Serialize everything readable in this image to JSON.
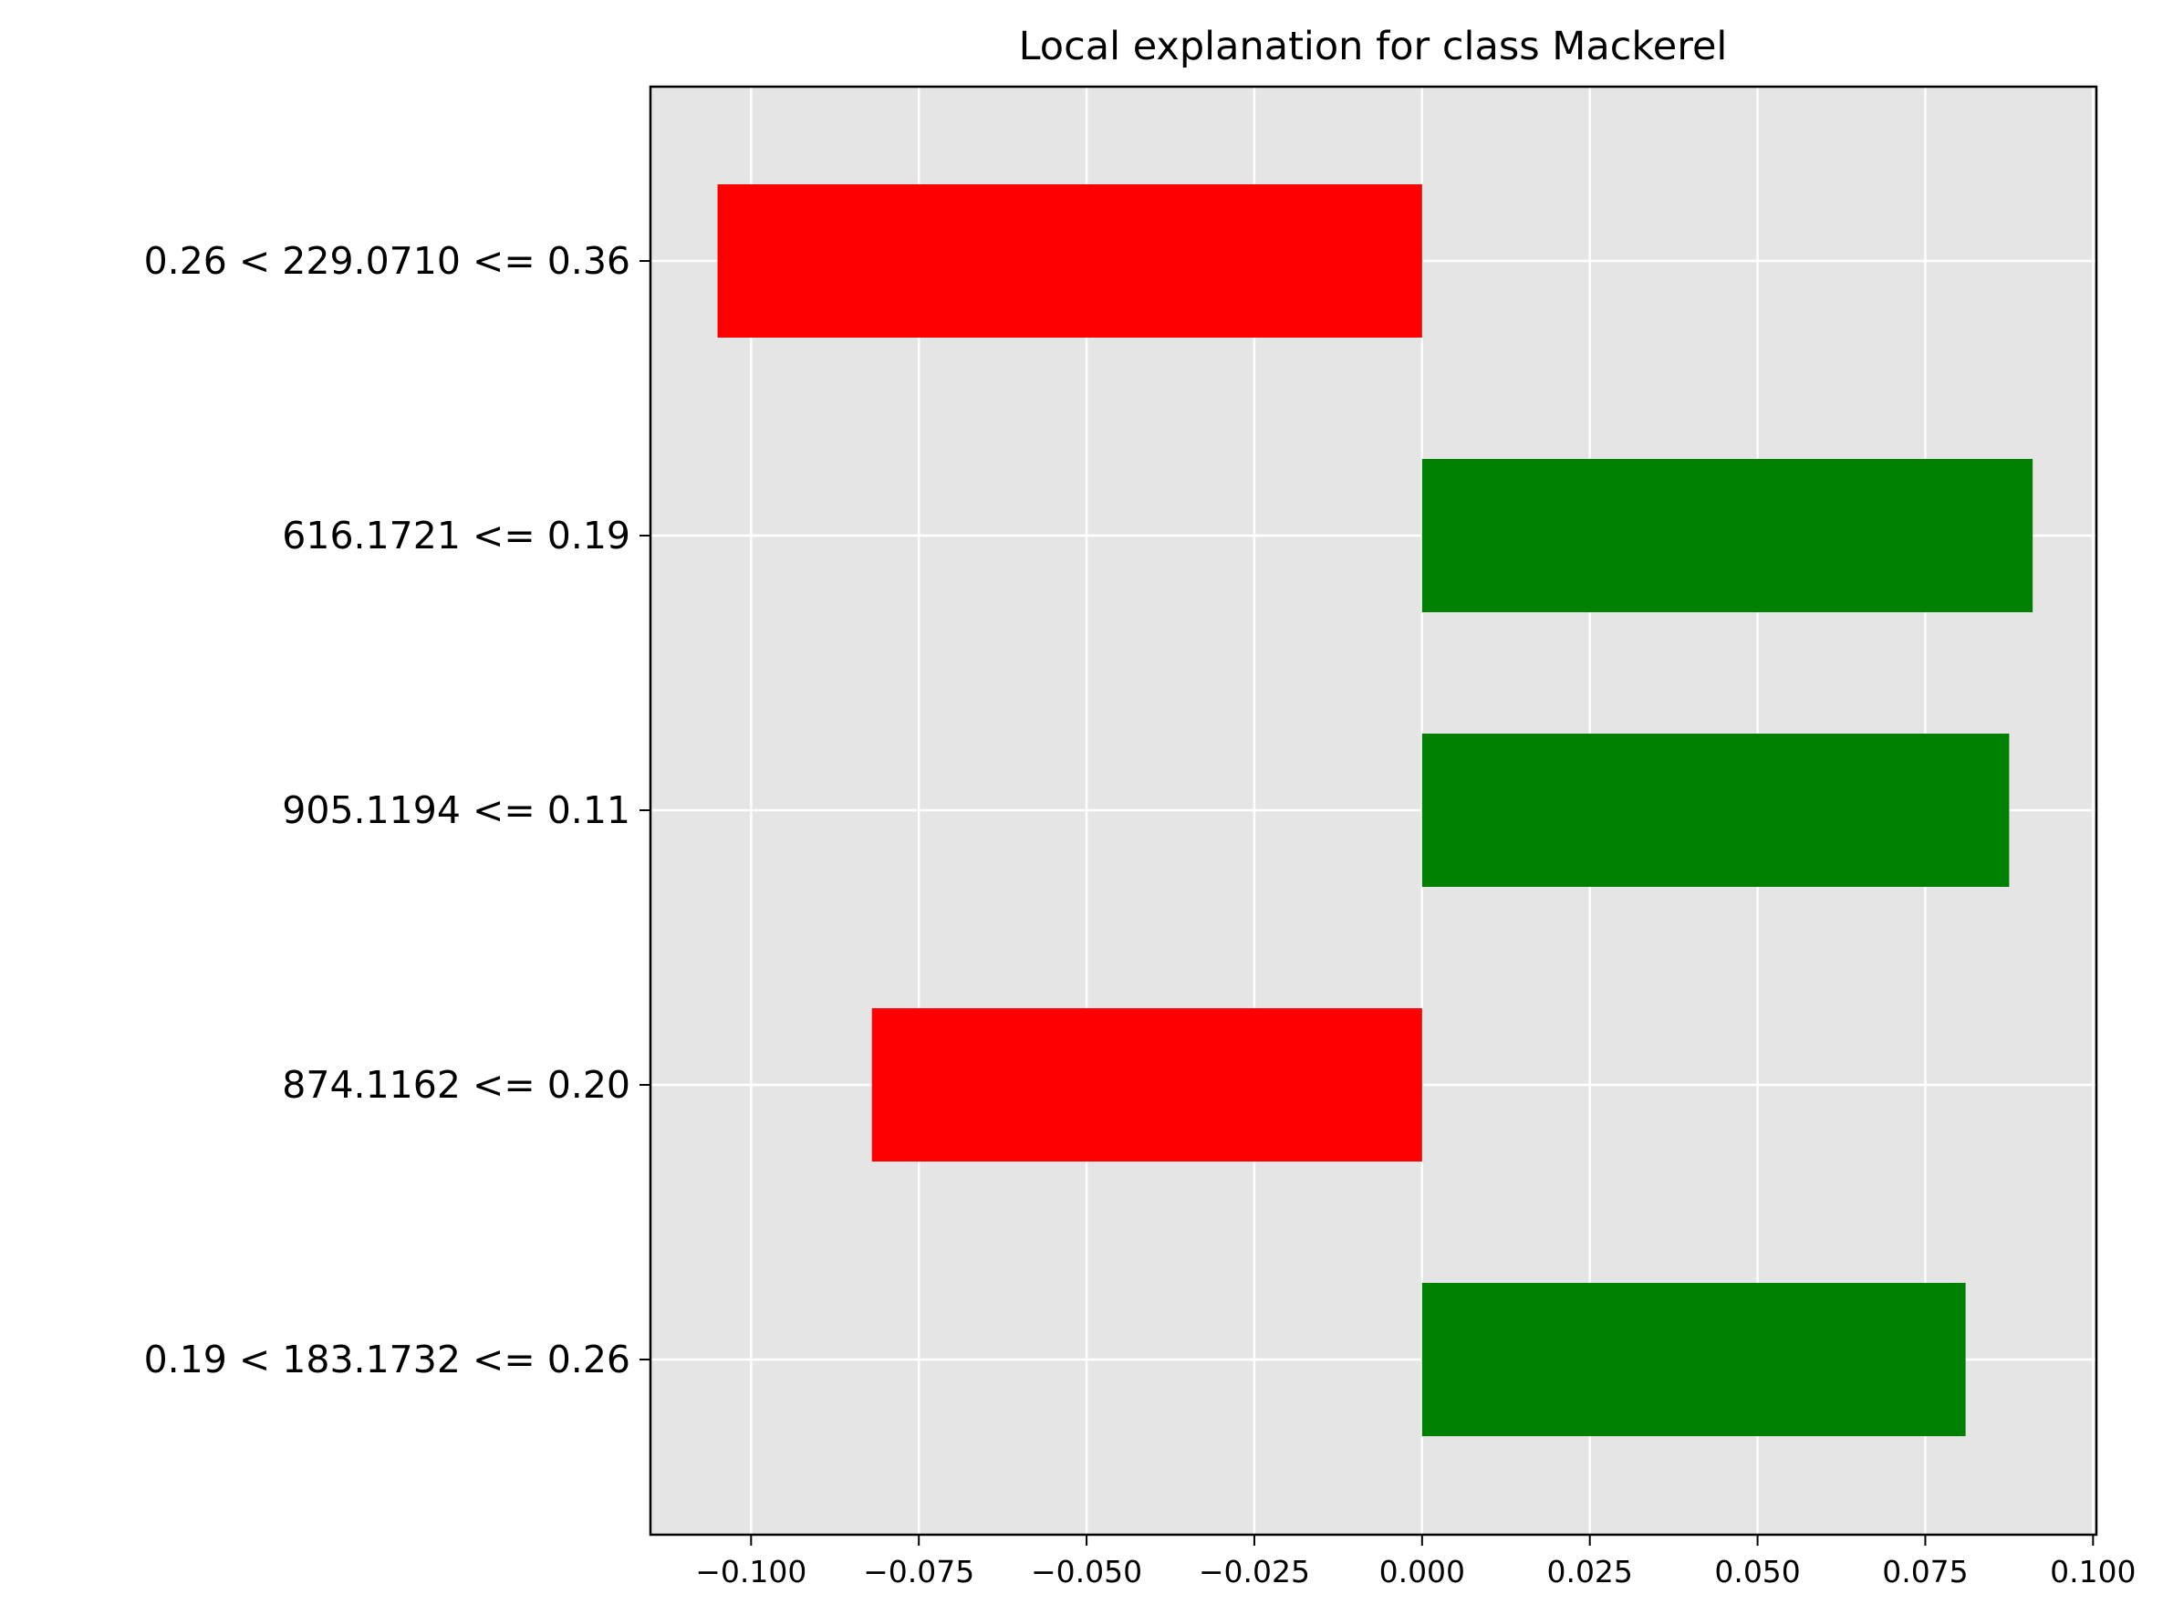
{
  "chart_data": {
    "type": "bar",
    "orientation": "horizontal",
    "title": "Local explanation for class Mackerel",
    "xlabel": "",
    "ylabel": "",
    "categories": [
      "0.26 < 229.0710 <= 0.36",
      "616.1721 <= 0.19",
      "905.1194 <= 0.11",
      "874.1162 <= 0.20",
      "0.19 < 183.1732 <= 0.26"
    ],
    "values": [
      -0.105,
      0.091,
      0.0875,
      -0.082,
      0.081
    ],
    "xlim": [
      -0.115,
      0.1005
    ],
    "xticks": [
      -0.1,
      -0.075,
      -0.05,
      -0.025,
      0.0,
      0.025,
      0.05,
      0.075,
      0.1
    ],
    "xtick_labels": [
      "−0.100",
      "−0.075",
      "−0.050",
      "−0.025",
      "0.000",
      "0.025",
      "0.050",
      "0.075",
      "0.100"
    ],
    "grid": true,
    "colors": {
      "positive": "#008000",
      "negative": "#ff0000",
      "plot_background": "#e5e5e5",
      "grid": "#ffffff"
    }
  }
}
